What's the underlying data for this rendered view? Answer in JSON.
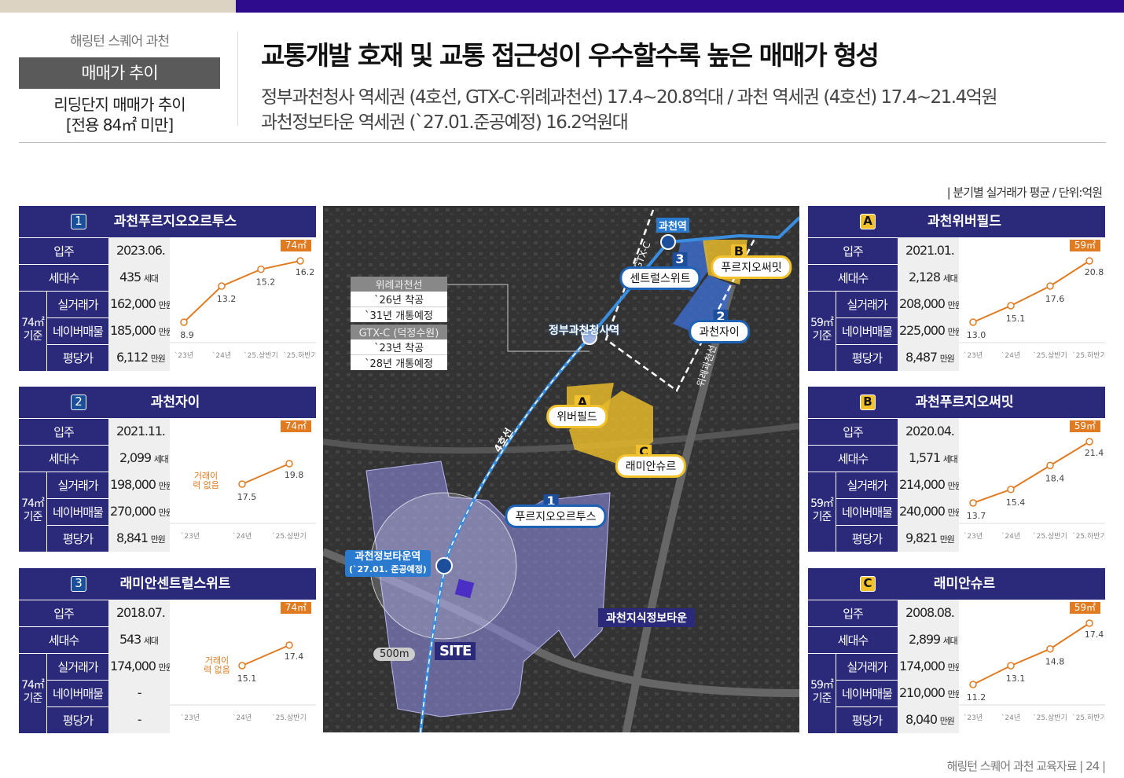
{
  "header": {
    "brand": "해링턴 스퀘어 과천",
    "section": "매매가 추이",
    "subsection_line1": "리딩단지 매매가 추이",
    "subsection_line2": "[전용 84㎡ 미만]",
    "title": "교통개발 호재 및 교통 접근성이 우수할수록 높은 매매가 형성",
    "desc_line1": "정부과천청사 역세권 (4호선, GTX-C·위례과천선) 17.4~20.8억대 / 과천 역세권 (4호선) 17.4~21.4억원",
    "desc_line2": "과천정보타운 역세권 (`27.01.준공예정) 16.2억원대"
  },
  "unit_note": "| 분기별 실거래가 평균 / 단위:억원",
  "labels": {
    "move_in": "입주",
    "households": "세대수",
    "real_price": "실거래가",
    "naver": "네이버매물",
    "per_pyeong": "평당가",
    "unit_man": "만원",
    "unit_house": "세대",
    "no_trade": "거래이력 없음"
  },
  "colors": {
    "navy": "#2b2a7a",
    "orange": "#e07b22",
    "yellow": "#f2c22d",
    "blue": "#1d62b4"
  },
  "cards": [
    {
      "badge": "1",
      "badge_style": "blue",
      "name": "과천푸르지오오르투스",
      "move_in": "2023.06.",
      "households": "435",
      "basis": "74㎡ 기준",
      "real_price": "162,000",
      "naver": "185,000",
      "per_pyeong": "6,112",
      "area": "74㎡",
      "categories": [
        "`23년",
        "`24년",
        "`25.상반기",
        "`25.하반기"
      ],
      "values": [
        8.9,
        13.2,
        15.2,
        16.2
      ],
      "no_trade": false
    },
    {
      "badge": "2",
      "badge_style": "blue",
      "name": "과천자이",
      "move_in": "2021.11.",
      "households": "2,099",
      "basis": "74㎡ 기준",
      "real_price": "198,000",
      "naver": "270,000",
      "per_pyeong": "8,841",
      "area": "74㎡",
      "categories": [
        "`23년",
        "`24년",
        "`25.상반기"
      ],
      "values": [
        null,
        17.5,
        19.8
      ],
      "no_trade": true
    },
    {
      "badge": "3",
      "badge_style": "blue",
      "name": "래미안센트럴스위트",
      "move_in": "2018.07.",
      "households": "543",
      "basis": "74㎡ 기준",
      "real_price": "174,000",
      "naver": "-",
      "per_pyeong": "-",
      "area": "74㎡",
      "categories": [
        "`23년",
        "`24년",
        "`25.상반기"
      ],
      "values": [
        null,
        15.1,
        17.4
      ],
      "no_trade": true
    },
    {
      "badge": "A",
      "badge_style": "yellow",
      "name": "과천위버필드",
      "move_in": "2021.01.",
      "households": "2,128",
      "basis": "59㎡ 기준",
      "real_price": "208,000",
      "naver": "225,000",
      "per_pyeong": "8,487",
      "area": "59㎡",
      "categories": [
        "`23년",
        "`24년",
        "`25.상반기",
        "`25.하반기"
      ],
      "values": [
        13.0,
        15.1,
        17.6,
        20.8
      ],
      "no_trade": false
    },
    {
      "badge": "B",
      "badge_style": "yellow",
      "name": "과천푸르지오써밋",
      "move_in": "2020.04.",
      "households": "1,571",
      "basis": "59㎡ 기준",
      "real_price": "214,000",
      "naver": "240,000",
      "per_pyeong": "9,821",
      "area": "59㎡",
      "categories": [
        "`23년",
        "`24년",
        "`25.상반기",
        "`25.하반기"
      ],
      "values": [
        13.7,
        15.4,
        18.4,
        21.4
      ],
      "no_trade": false
    },
    {
      "badge": "C",
      "badge_style": "yellow",
      "name": "래미안슈르",
      "move_in": "2008.08.",
      "households": "2,899",
      "basis": "59㎡ 기준",
      "real_price": "174,000",
      "naver": "210,000",
      "per_pyeong": "8,040",
      "area": "59㎡",
      "categories": [
        "`23년",
        "`24년",
        "`25.상반기",
        "`25.하반기"
      ],
      "values": [
        11.2,
        13.1,
        14.8,
        17.4
      ],
      "no_trade": false
    }
  ],
  "map": {
    "legend": [
      {
        "title": "위례과천선",
        "lines": [
          "`26년 착공",
          "`31년 개통예정"
        ]
      },
      {
        "title": "GTX-C (덕정수원)",
        "lines": [
          "`23년 착공",
          "`28년 개통예정"
        ]
      }
    ],
    "stations": {
      "gwacheon": "과천역",
      "govt": "정부과천청사역",
      "infotown": "과천정보타운역",
      "infotown_note": "(`27.01. 준공예정)"
    },
    "lines": {
      "line4": "4호선",
      "gtx": "GTX-C",
      "wirye": "위례과천선"
    },
    "complexes": [
      {
        "badge": "3",
        "label": "센트럴스위트"
      },
      {
        "badge": "B",
        "label": "푸르지오써밋"
      },
      {
        "badge": "2",
        "label": "과천자이"
      },
      {
        "badge": "A",
        "label": "위버필드"
      },
      {
        "badge": "C",
        "label": "래미안슈르"
      },
      {
        "badge": "1",
        "label": "푸르지오오르투스"
      }
    ],
    "district": "과천지식정보타운",
    "site": "SITE",
    "radius": "500m"
  },
  "footer": "해링턴 스퀘어 과천 교육자료 | 24 |"
}
